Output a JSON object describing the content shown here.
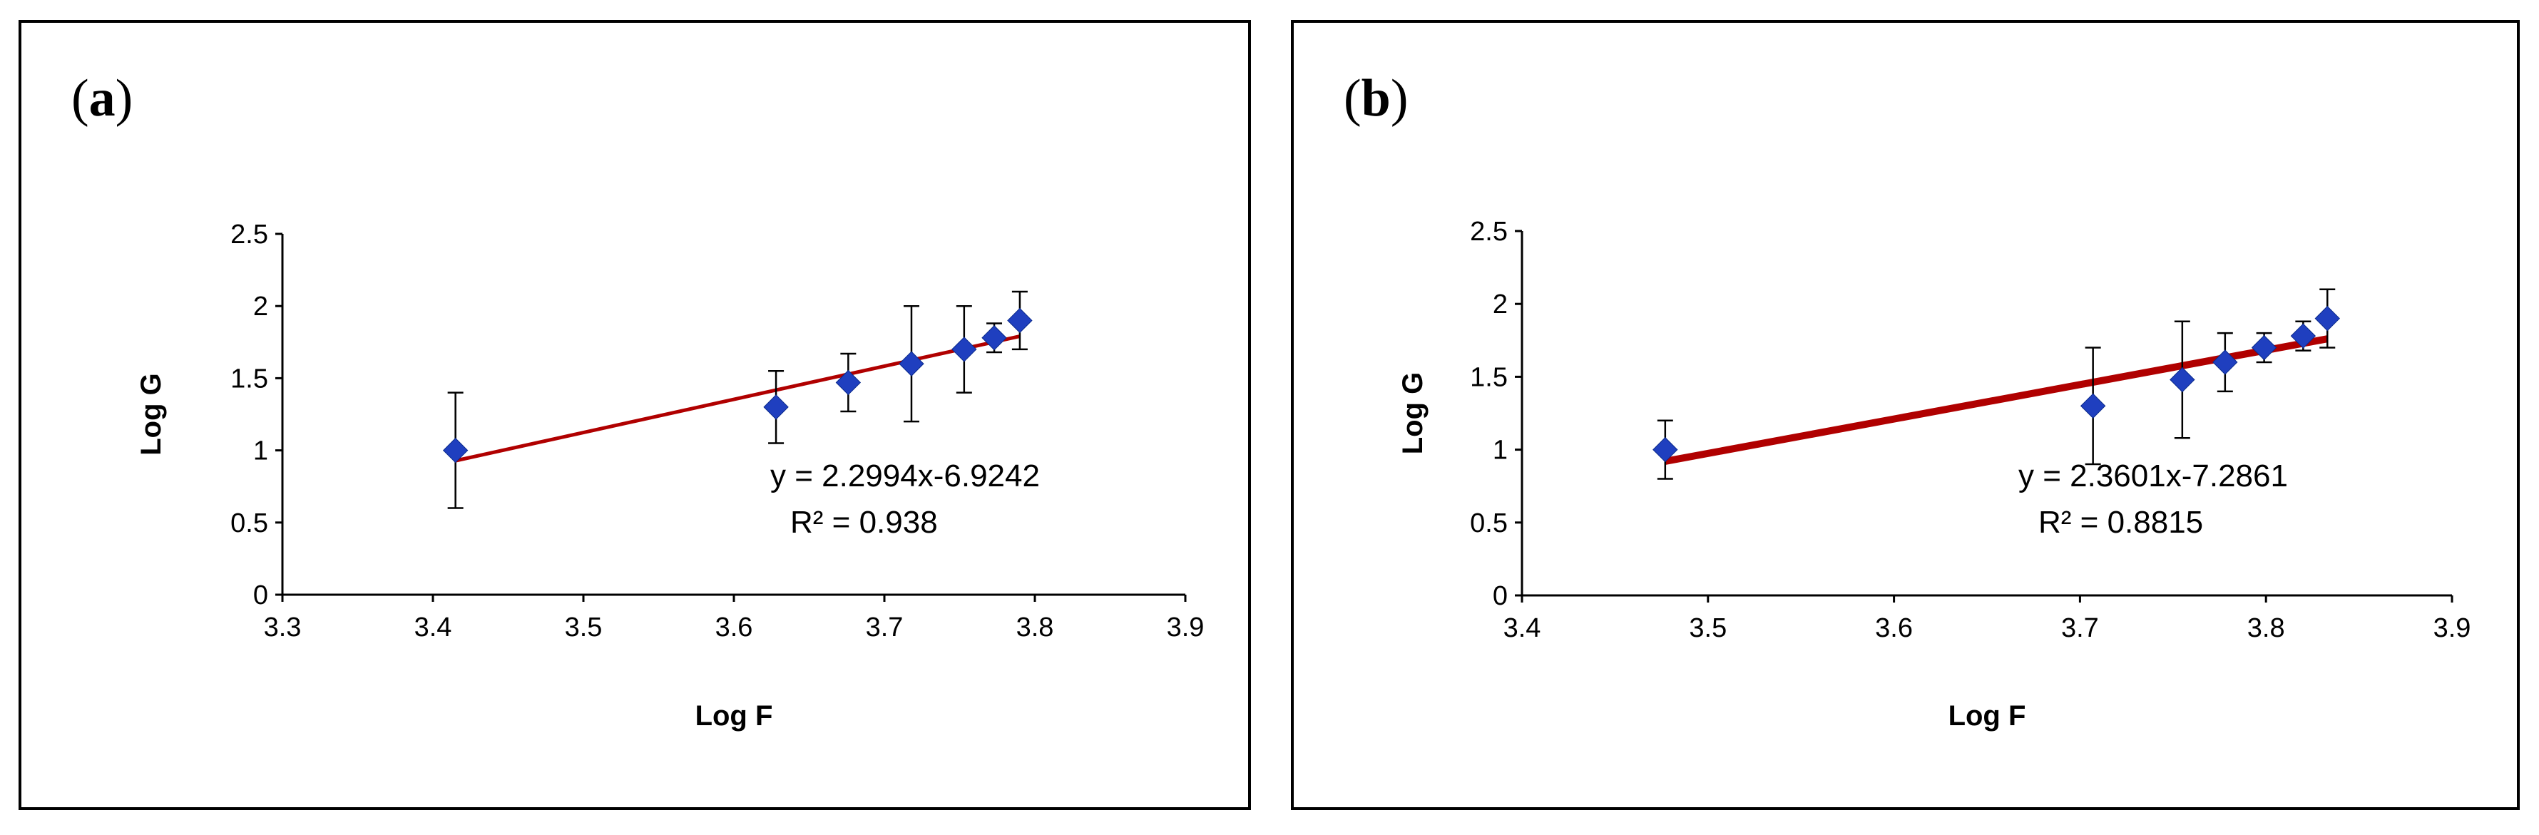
{
  "chart_data": [
    {
      "type": "scatter",
      "panel_label": "a",
      "xlabel": "Log F",
      "ylabel": "Log G",
      "xlim": [
        3.3,
        3.9
      ],
      "ylim": [
        0,
        2.5
      ],
      "x_ticks": [
        "3.3",
        "3.4",
        "3.5",
        "3.6",
        "3.7",
        "3.8",
        "3.9"
      ],
      "y_ticks": [
        "0",
        "0.5",
        "1",
        "1.5",
        "2",
        "2.5"
      ],
      "marker_color": "#1f3fbf",
      "trend_color": "#b00000",
      "series": [
        {
          "name": "Log G",
          "points": [
            {
              "x": 3.415,
              "y": 1.0,
              "err": 0.4
            },
            {
              "x": 3.628,
              "y": 1.3,
              "err": 0.25
            },
            {
              "x": 3.676,
              "y": 1.47,
              "err": 0.2
            },
            {
              "x": 3.718,
              "y": 1.6,
              "err": 0.4
            },
            {
              "x": 3.753,
              "y": 1.7,
              "err": 0.3
            },
            {
              "x": 3.773,
              "y": 1.78,
              "err": 0.1
            },
            {
              "x": 3.79,
              "y": 1.9,
              "err": 0.2
            }
          ]
        }
      ],
      "trendline": {
        "slope": 2.2994,
        "intercept": -6.9242,
        "x_start": 3.415,
        "x_end": 3.79
      },
      "equation": "y = 2.2994x-6.9242",
      "r2": "R² = 0.938"
    },
    {
      "type": "scatter",
      "panel_label": "b",
      "xlabel": "Log F",
      "ylabel": "Log G",
      "xlim": [
        3.4,
        3.9
      ],
      "ylim": [
        0,
        2.5
      ],
      "x_ticks": [
        "3.4",
        "3.5",
        "3.6",
        "3.7",
        "3.8",
        "3.9"
      ],
      "y_ticks": [
        "0",
        "0.5",
        "1",
        "1.5",
        "2",
        "2.5"
      ],
      "marker_color": "#1f3fbf",
      "trend_color": "#b00000",
      "series": [
        {
          "name": "Log G",
          "points": [
            {
              "x": 3.477,
              "y": 1.0,
              "err": 0.2
            },
            {
              "x": 3.707,
              "y": 1.3,
              "err": 0.4
            },
            {
              "x": 3.755,
              "y": 1.48,
              "err": 0.4
            },
            {
              "x": 3.778,
              "y": 1.6,
              "err": 0.2
            },
            {
              "x": 3.799,
              "y": 1.7,
              "err": 0.1
            },
            {
              "x": 3.82,
              "y": 1.78,
              "err": 0.1
            },
            {
              "x": 3.833,
              "y": 1.9,
              "err": 0.2
            }
          ]
        }
      ],
      "trendline": {
        "slope": 2.3601,
        "intercept": -7.2861,
        "x_start": 3.477,
        "x_end": 3.833
      },
      "equation": "y = 2.3601x-7.2861",
      "r2": "R² = 0.8815"
    }
  ]
}
